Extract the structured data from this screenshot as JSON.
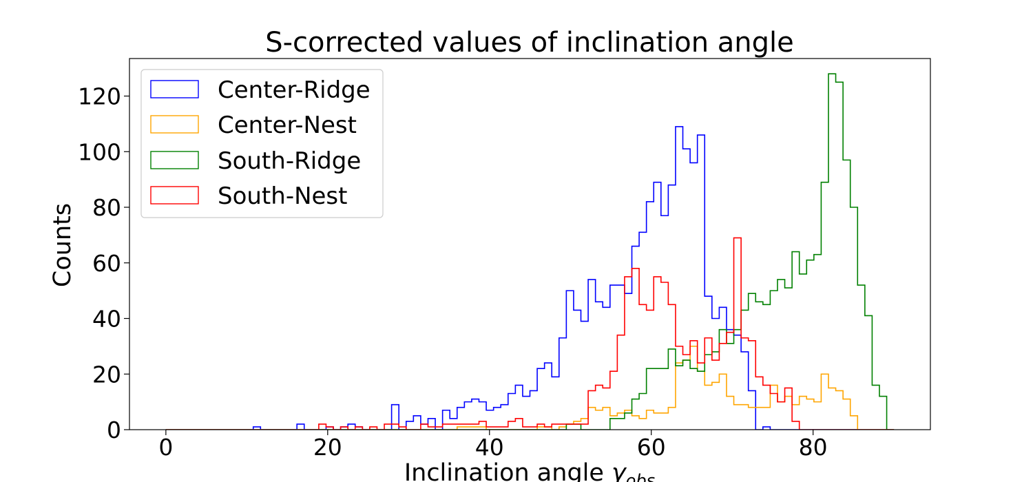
{
  "chart_data": {
    "type": "histogram",
    "title": "S-corrected values of inclination angle",
    "xlabel_main": "Inclination angle ",
    "xlabel_symbol": "γ",
    "xlabel_subscript": "obs",
    "ylabel": "Counts",
    "xlim": [
      -4.5,
      94.5
    ],
    "ylim": [
      0,
      133.5
    ],
    "xticks": [
      0,
      20,
      40,
      60,
      80
    ],
    "yticks": [
      0,
      20,
      40,
      60,
      80,
      100,
      120
    ],
    "grid": false,
    "legend": {
      "position": "upper-left",
      "entries": [
        "Center-Ridge",
        "Center-Nest",
        "South-Ridge",
        "South-Nest"
      ]
    },
    "bin_edges": {
      "start": 0,
      "end": 90,
      "count": 100
    },
    "series": [
      {
        "name": "Center-Ridge",
        "color": "#0000ff",
        "values": [
          0,
          0,
          0,
          0,
          0,
          0,
          0,
          0,
          0,
          0,
          0,
          0,
          1,
          0,
          0,
          0,
          0,
          0,
          2,
          0,
          0,
          0,
          1,
          0,
          1,
          2,
          1,
          0,
          0,
          0,
          0,
          9,
          0,
          3,
          5,
          2,
          4,
          0,
          7,
          4,
          8,
          10,
          11,
          10,
          7,
          8,
          9,
          13,
          16,
          12,
          14,
          22,
          24,
          19,
          33,
          50,
          43,
          39,
          54,
          46,
          44,
          52,
          52,
          49,
          66,
          71,
          82,
          89,
          77,
          88,
          109,
          101,
          96,
          106,
          48,
          40,
          44,
          36,
          34,
          28,
          14,
          0,
          1,
          0,
          0,
          0,
          0,
          0,
          0,
          0,
          0,
          0,
          0,
          0,
          0,
          0,
          0,
          0,
          0,
          0
        ]
      },
      {
        "name": "Center-Nest",
        "color": "#ffa500",
        "values": [
          0,
          0,
          0,
          0,
          0,
          0,
          0,
          0,
          0,
          0,
          0,
          0,
          0,
          0,
          0,
          0,
          0,
          0,
          0,
          0,
          0,
          0,
          0,
          0,
          0,
          0,
          0,
          0,
          0,
          0,
          0,
          0,
          0,
          0,
          0,
          0,
          0,
          0,
          0,
          0,
          1,
          1,
          1,
          1,
          0,
          0,
          0,
          0,
          0,
          0,
          0,
          1,
          1,
          0,
          1,
          2,
          3,
          4,
          8,
          7,
          8,
          5,
          6,
          7,
          5,
          4,
          7,
          6,
          6,
          8,
          24,
          25,
          30,
          21,
          16,
          17,
          20,
          12,
          9,
          9,
          8,
          8,
          8,
          16,
          10,
          12,
          9,
          12,
          11,
          10,
          20,
          15,
          14,
          11,
          5,
          0,
          0,
          0,
          0,
          0
        ]
      },
      {
        "name": "South-Ridge",
        "color": "#008000",
        "values": [
          0,
          0,
          0,
          0,
          0,
          0,
          0,
          0,
          0,
          0,
          0,
          0,
          0,
          0,
          0,
          0,
          0,
          0,
          0,
          0,
          0,
          0,
          0,
          0,
          0,
          0,
          0,
          0,
          0,
          0,
          0,
          0,
          0,
          0,
          0,
          0,
          0,
          0,
          0,
          0,
          0,
          0,
          0,
          0,
          0,
          0,
          0,
          0,
          0,
          0,
          0,
          0,
          0,
          0,
          0,
          2,
          2,
          0,
          0,
          0,
          0,
          4,
          4,
          6,
          11,
          13,
          22,
          22,
          22,
          29,
          23,
          25,
          22,
          21,
          27,
          28,
          36,
          31,
          36,
          43,
          49,
          46,
          45,
          50,
          54,
          51,
          64,
          56,
          61,
          63,
          89,
          128,
          125,
          97,
          80,
          52,
          41,
          16,
          12,
          0
        ]
      },
      {
        "name": "South-Nest",
        "color": "#ff0000",
        "values": [
          0,
          0,
          0,
          0,
          0,
          0,
          0,
          0,
          0,
          0,
          0,
          0,
          0,
          0,
          0,
          0,
          0,
          0,
          0,
          0,
          0,
          2,
          1,
          0,
          1,
          0,
          1,
          0,
          1,
          0,
          2,
          2,
          1,
          0,
          0,
          2,
          1,
          1,
          2,
          2,
          2,
          2,
          2,
          3,
          1,
          1,
          1,
          3,
          4,
          1,
          1,
          2,
          1,
          2,
          2,
          2,
          2,
          2,
          14,
          16,
          15,
          21,
          34,
          55,
          58,
          45,
          43,
          55,
          53,
          45,
          30,
          27,
          32,
          24,
          33,
          25,
          31,
          35,
          69,
          33,
          32,
          19,
          16,
          13,
          10,
          15,
          3,
          0,
          0,
          0,
          0,
          0,
          0,
          0,
          0,
          0,
          0,
          0,
          0,
          0
        ]
      }
    ]
  }
}
